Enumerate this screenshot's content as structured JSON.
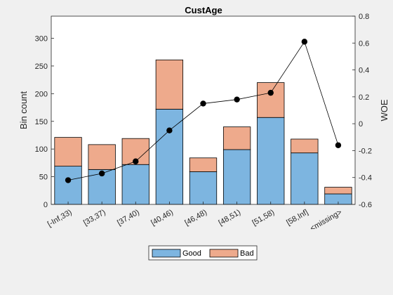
{
  "colors": {
    "good": "#7db5e0",
    "bad": "#eeaa8c",
    "woe": "#000000",
    "background": "#f0f0f0"
  },
  "chart_data": {
    "type": "bar",
    "stacked": true,
    "title": "CustAge",
    "xlabel": "",
    "ylabel": "Bin count",
    "y2label": "WOE",
    "categories": [
      "[-Inf,33)",
      "[33,37)",
      "[37,40)",
      "[40,46)",
      "[46,48)",
      "[48,51)",
      "[51,58)",
      "[58,Inf]",
      "<missing>"
    ],
    "series": [
      {
        "name": "Good",
        "values": [
          69,
          63,
          72,
          172,
          59,
          99,
          157,
          93,
          19
        ]
      },
      {
        "name": "Bad",
        "values": [
          52,
          45,
          47,
          89,
          25,
          41,
          63,
          25,
          12
        ]
      }
    ],
    "line": {
      "axis": "right",
      "values": [
        -0.42,
        -0.37,
        -0.28,
        -0.05,
        0.15,
        0.18,
        0.23,
        0.61,
        -0.16
      ]
    },
    "ylim": [
      0,
      340
    ],
    "yticks": [
      0,
      50,
      100,
      150,
      200,
      250,
      300
    ],
    "y2lim": [
      -0.6,
      0.8
    ],
    "y2ticks": [
      -0.6,
      -0.4,
      -0.2,
      0,
      0.2,
      0.4,
      0.6,
      0.8
    ],
    "grid": false,
    "legend_position": "bottom-center"
  }
}
